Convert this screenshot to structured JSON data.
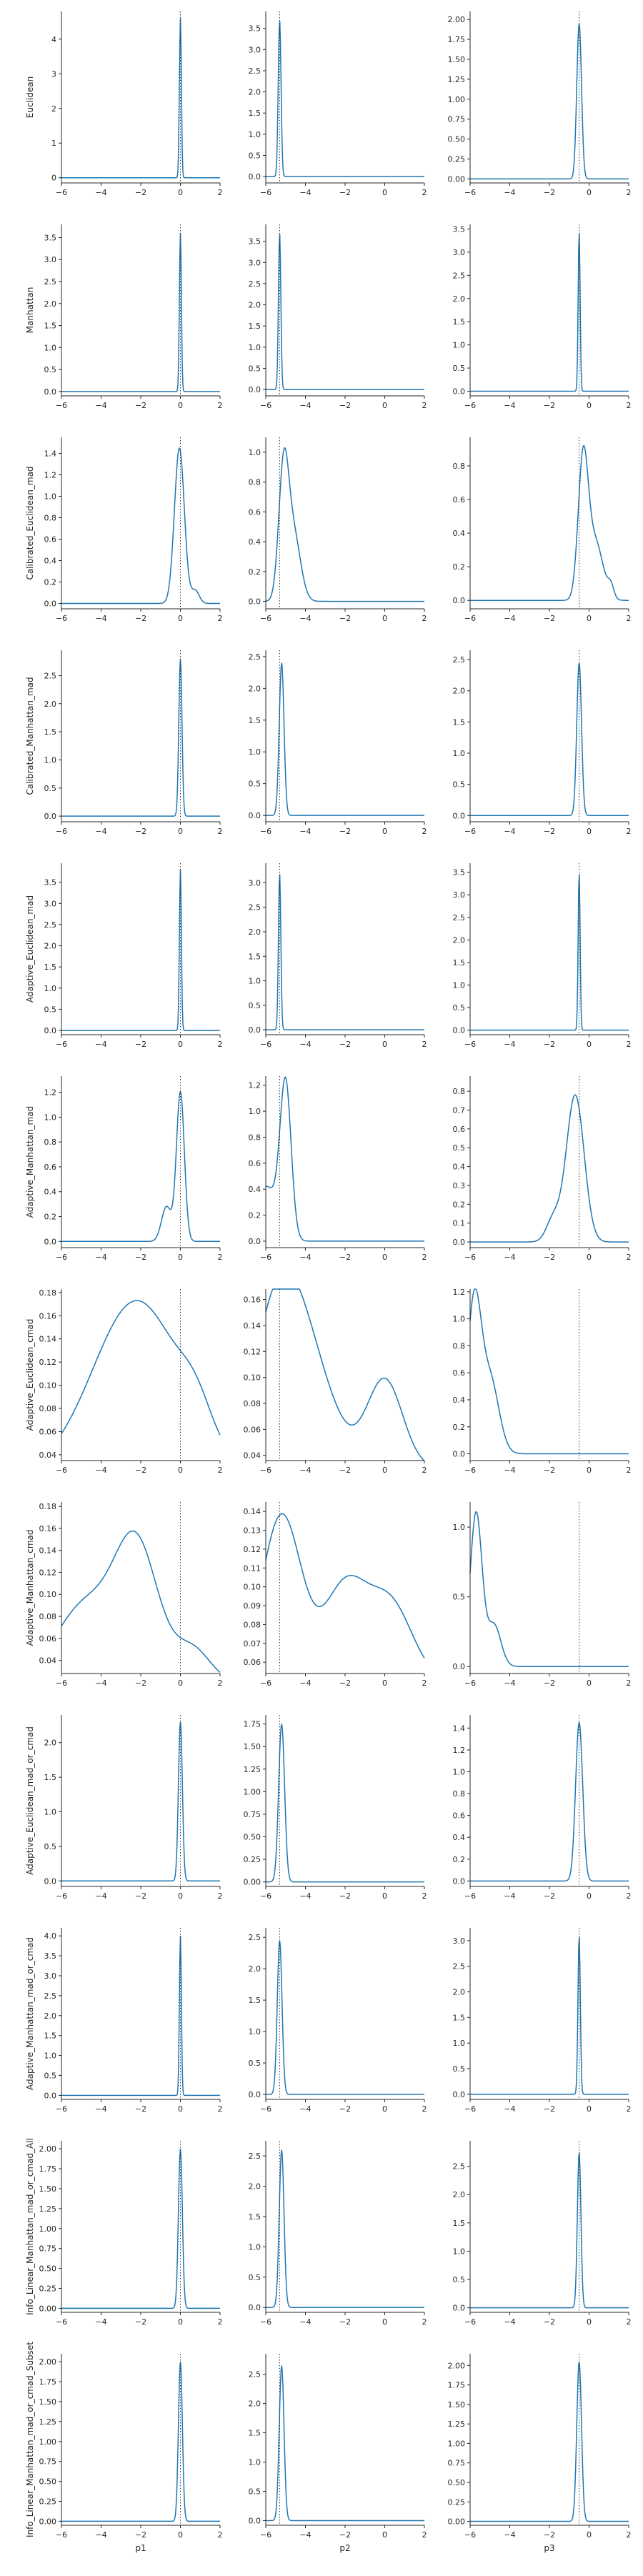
{
  "chart_data": {
    "type": "line",
    "grid": false,
    "x_ticks": [
      -6,
      -4,
      -2,
      0,
      2
    ],
    "xlim": [
      -6,
      2
    ],
    "column_labels": [
      "p1",
      "p2",
      "p3"
    ],
    "reference_values": [
      0,
      -5.3,
      -0.5
    ],
    "colors": {
      "density": "#1f77b4",
      "reference": "#333333",
      "axes": "#262626"
    },
    "rows": [
      {
        "ylabel": "Euclidean",
        "panels": [
          {
            "ylim": [
              -0.15,
              4.8
            ],
            "yticks": [
              0,
              1,
              2,
              3,
              4
            ],
            "peaks": [
              [
                0,
                0.05,
                4.6
              ]
            ]
          },
          {
            "ylim": [
              -0.15,
              3.9
            ],
            "yticks": [
              0,
              0.5,
              1.0,
              1.5,
              2.0,
              2.5,
              3.0,
              3.5
            ],
            "tick_decimals": 1,
            "peaks": [
              [
                -5.3,
                0.07,
                3.7
              ]
            ]
          },
          {
            "ylim": [
              -0.05,
              2.1
            ],
            "yticks": [
              0,
              0.25,
              0.5,
              0.75,
              1.0,
              1.25,
              1.5,
              1.75,
              2.0
            ],
            "tick_decimals": 2,
            "peaks": [
              [
                -0.5,
                0.12,
                1.95
              ]
            ]
          }
        ]
      },
      {
        "ylabel": "Manhattan",
        "panels": [
          {
            "ylim": [
              -0.1,
              3.8
            ],
            "yticks": [
              0,
              0.5,
              1.0,
              1.5,
              2.0,
              2.5,
              3.0,
              3.5
            ],
            "tick_decimals": 1,
            "peaks": [
              [
                0,
                0.05,
                3.6
              ]
            ]
          },
          {
            "ylim": [
              -0.15,
              3.9
            ],
            "yticks": [
              0,
              0.5,
              1.0,
              1.5,
              2.0,
              2.5,
              3.0,
              3.5
            ],
            "tick_decimals": 1,
            "peaks": [
              [
                -5.3,
                0.06,
                3.7
              ]
            ]
          },
          {
            "ylim": [
              -0.1,
              3.6
            ],
            "yticks": [
              0,
              0.5,
              1.0,
              1.5,
              2.0,
              2.5,
              3.0,
              3.5
            ],
            "tick_decimals": 1,
            "peaks": [
              [
                -0.5,
                0.05,
                3.45
              ]
            ]
          }
        ]
      },
      {
        "ylabel": "Calibrated_Euclidean_mad",
        "panels": [
          {
            "ylim": [
              -0.05,
              1.55
            ],
            "yticks": [
              0,
              0.2,
              0.4,
              0.6,
              0.8,
              1.0,
              1.2,
              1.4
            ],
            "tick_decimals": 1,
            "peaks": [
              [
                -0.05,
                0.25,
                1.45
              ],
              [
                0.75,
                0.2,
                0.12
              ]
            ]
          },
          {
            "ylim": [
              -0.05,
              1.1
            ],
            "yticks": [
              0,
              0.2,
              0.4,
              0.6,
              0.8,
              1.0
            ],
            "tick_decimals": 1,
            "peaks": [
              [
                -5.1,
                0.25,
                0.85
              ],
              [
                -4.6,
                0.35,
                0.45
              ]
            ]
          },
          {
            "ylim": [
              -0.05,
              0.97
            ],
            "yticks": [
              0,
              0.2,
              0.4,
              0.6,
              0.8
            ],
            "tick_decimals": 1,
            "peaks": [
              [
                -0.3,
                0.25,
                0.8
              ],
              [
                0.3,
                0.4,
                0.35
              ],
              [
                1.1,
                0.15,
                0.07
              ]
            ]
          }
        ]
      },
      {
        "ylabel": "Calibrated_Manhattan_mad",
        "panels": [
          {
            "ylim": [
              -0.1,
              2.95
            ],
            "yticks": [
              0,
              0.5,
              1.0,
              1.5,
              2.0,
              2.5
            ],
            "tick_decimals": 1,
            "peaks": [
              [
                0,
                0.08,
                2.8
              ]
            ]
          },
          {
            "ylim": [
              -0.1,
              2.6
            ],
            "yticks": [
              0,
              0.5,
              1.0,
              1.5,
              2.0,
              2.5
            ],
            "tick_decimals": 1,
            "peaks": [
              [
                -5.2,
                0.12,
                2.4
              ]
            ]
          },
          {
            "ylim": [
              -0.1,
              2.65
            ],
            "yticks": [
              0,
              0.5,
              1.0,
              1.5,
              2.0,
              2.5
            ],
            "tick_decimals": 1,
            "peaks": [
              [
                -0.5,
                0.12,
                2.45
              ]
            ]
          }
        ]
      },
      {
        "ylabel": "Adaptive_Euclidean_mad",
        "panels": [
          {
            "ylim": [
              -0.1,
              3.95
            ],
            "yticks": [
              0,
              0.5,
              1.0,
              1.5,
              2.0,
              2.5,
              3.0,
              3.5
            ],
            "tick_decimals": 1,
            "peaks": [
              [
                0,
                0.05,
                3.8
              ]
            ]
          },
          {
            "ylim": [
              -0.1,
              3.4
            ],
            "yticks": [
              0,
              0.5,
              1.0,
              1.5,
              2.0,
              2.5,
              3.0
            ],
            "tick_decimals": 1,
            "peaks": [
              [
                -5.3,
                0.06,
                3.2
              ]
            ]
          },
          {
            "ylim": [
              -0.1,
              3.7
            ],
            "yticks": [
              0,
              0.5,
              1.0,
              1.5,
              2.0,
              2.5,
              3.0,
              3.5
            ],
            "tick_decimals": 1,
            "peaks": [
              [
                -0.5,
                0.05,
                3.5
              ]
            ]
          }
        ]
      },
      {
        "ylabel": "Adaptive_Manhattan_mad",
        "panels": [
          {
            "ylim": [
              -0.05,
              1.33
            ],
            "yticks": [
              0,
              0.2,
              0.4,
              0.6,
              0.8,
              1.0,
              1.2
            ],
            "tick_decimals": 1,
            "peaks": [
              [
                0,
                0.2,
                1.2
              ],
              [
                -0.7,
                0.25,
                0.28
              ]
            ]
          },
          {
            "ylim": [
              -0.05,
              1.27
            ],
            "yticks": [
              0,
              0.2,
              0.4,
              0.6,
              0.8,
              1.0,
              1.2
            ],
            "tick_decimals": 1,
            "peaks": [
              [
                -5.0,
                0.28,
                1.18
              ],
              [
                -6.0,
                0.55,
                0.42
              ]
            ]
          },
          {
            "ylim": [
              -0.03,
              0.88
            ],
            "yticks": [
              0,
              0.1,
              0.2,
              0.3,
              0.4,
              0.5,
              0.6,
              0.7,
              0.8
            ],
            "tick_decimals": 1,
            "peaks": [
              [
                -0.7,
                0.45,
                0.78
              ],
              [
                -1.8,
                0.35,
                0.12
              ]
            ]
          }
        ]
      },
      {
        "ylabel": "Adaptive_Euclidean_cmad",
        "panels": [
          {
            "ylim": [
              0.035,
              0.183
            ],
            "yticks": [
              0.04,
              0.06,
              0.08,
              0.1,
              0.12,
              0.14,
              0.16,
              0.18
            ],
            "tick_decimals": 2,
            "baseline": 0.025,
            "peaks": [
              [
                -2.2,
                2.2,
                0.148
              ],
              [
                0.8,
                0.8,
                0.025
              ]
            ]
          },
          {
            "ylim": [
              0.036,
              0.168
            ],
            "yticks": [
              0.04,
              0.06,
              0.08,
              0.1,
              0.12,
              0.14,
              0.16
            ],
            "tick_decimals": 2,
            "baseline": 0.03,
            "peaks": [
              [
                -5.3,
                1.3,
                0.13
              ],
              [
                -3.5,
                1.3,
                0.05
              ],
              [
                0,
                0.9,
                0.068
              ]
            ]
          },
          {
            "ylim": [
              -0.05,
              1.22
            ],
            "yticks": [
              0,
              0.2,
              0.4,
              0.6,
              0.8,
              1.0,
              1.2
            ],
            "tick_decimals": 1,
            "peaks": [
              [
                -5.8,
                0.35,
                1.1
              ],
              [
                -5.0,
                0.45,
                0.55
              ]
            ]
          }
        ]
      },
      {
        "ylabel": "Adaptive_Manhattan_cmad",
        "panels": [
          {
            "ylim": [
              0.028,
              0.184
            ],
            "yticks": [
              0.04,
              0.06,
              0.08,
              0.1,
              0.12,
              0.14,
              0.16,
              0.18
            ],
            "tick_decimals": 2,
            "baseline": 0.02,
            "peaks": [
              [
                -2.2,
                1.1,
                0.12
              ],
              [
                -4.8,
                1.5,
                0.07
              ],
              [
                0.6,
                0.9,
                0.03
              ]
            ]
          },
          {
            "ylim": [
              0.054,
              0.145
            ],
            "yticks": [
              0.06,
              0.07,
              0.08,
              0.09,
              0.1,
              0.11,
              0.12,
              0.13,
              0.14
            ],
            "tick_decimals": 2,
            "baseline": 0.05,
            "peaks": [
              [
                -5.2,
                1.0,
                0.088
              ],
              [
                -2.0,
                1.1,
                0.05
              ],
              [
                0.3,
                1.1,
                0.04
              ]
            ]
          },
          {
            "ylim": [
              -0.05,
              1.18
            ],
            "yticks": [
              0,
              0.5,
              1.0
            ],
            "tick_decimals": 1,
            "peaks": [
              [
                -5.7,
                0.3,
                1.1
              ],
              [
                -4.8,
                0.35,
                0.3
              ]
            ]
          }
        ]
      },
      {
        "ylabel": "Adaptive_Euclidean_mad_or_cmad",
        "panels": [
          {
            "ylim": [
              -0.08,
              2.4
            ],
            "yticks": [
              0,
              0.5,
              1.0,
              1.5,
              2.0
            ],
            "tick_decimals": 1,
            "peaks": [
              [
                0,
                0.1,
                2.3
              ]
            ]
          },
          {
            "ylim": [
              -0.05,
              1.85
            ],
            "yticks": [
              0,
              0.25,
              0.5,
              0.75,
              1.0,
              1.25,
              1.5,
              1.75
            ],
            "tick_decimals": 2,
            "peaks": [
              [
                -5.2,
                0.15,
                1.75
              ]
            ]
          },
          {
            "ylim": [
              -0.05,
              1.52
            ],
            "yticks": [
              0,
              0.2,
              0.4,
              0.6,
              0.8,
              1.0,
              1.2,
              1.4
            ],
            "tick_decimals": 1,
            "peaks": [
              [
                -0.5,
                0.18,
                1.45
              ]
            ]
          }
        ]
      },
      {
        "ylabel": "Adaptive_Manhattan_mad_or_cmad",
        "panels": [
          {
            "ylim": [
              -0.1,
              4.2
            ],
            "yticks": [
              0,
              0.5,
              1.0,
              1.5,
              2.0,
              2.5,
              3.0,
              3.5,
              4.0
            ],
            "tick_decimals": 1,
            "peaks": [
              [
                0,
                0.05,
                4.0
              ]
            ]
          },
          {
            "ylim": [
              -0.08,
              2.65
            ],
            "yticks": [
              0,
              0.5,
              1.0,
              1.5,
              2.0,
              2.5
            ],
            "tick_decimals": 1,
            "peaks": [
              [
                -5.3,
                0.12,
                2.45
              ]
            ]
          },
          {
            "ylim": [
              -0.1,
              3.25
            ],
            "yticks": [
              0,
              0.5,
              1.0,
              1.5,
              2.0,
              2.5,
              3.0
            ],
            "tick_decimals": 1,
            "peaks": [
              [
                -0.5,
                0.06,
                3.1
              ]
            ]
          }
        ]
      },
      {
        "ylabel": "Info_Linear_Manhattan_mad_or_cmad_All",
        "panels": [
          {
            "ylim": [
              -0.05,
              2.1
            ],
            "yticks": [
              0,
              0.25,
              0.5,
              0.75,
              1.0,
              1.25,
              1.5,
              1.75,
              2.0
            ],
            "tick_decimals": 2,
            "peaks": [
              [
                0,
                0.1,
                2.0
              ]
            ]
          },
          {
            "ylim": [
              -0.08,
              2.75
            ],
            "yticks": [
              0,
              0.5,
              1.0,
              1.5,
              2.0,
              2.5
            ],
            "tick_decimals": 1,
            "peaks": [
              [
                -5.2,
                0.12,
                2.6
              ]
            ]
          },
          {
            "ylim": [
              -0.08,
              2.95
            ],
            "yticks": [
              0,
              0.5,
              1.0,
              1.5,
              2.0,
              2.5
            ],
            "tick_decimals": 1,
            "peaks": [
              [
                -0.5,
                0.09,
                2.75
              ]
            ]
          }
        ]
      },
      {
        "ylabel": "Info_Linear_Manhattan_mad_or_cmad_Subset",
        "panels": [
          {
            "ylim": [
              -0.05,
              2.1
            ],
            "yticks": [
              0,
              0.25,
              0.5,
              0.75,
              1.0,
              1.25,
              1.5,
              1.75,
              2.0
            ],
            "tick_decimals": 2,
            "peaks": [
              [
                0,
                0.1,
                2.0
              ]
            ]
          },
          {
            "ylim": [
              -0.08,
              2.85
            ],
            "yticks": [
              0,
              0.5,
              1.0,
              1.5,
              2.0,
              2.5
            ],
            "tick_decimals": 1,
            "peaks": [
              [
                -5.2,
                0.12,
                2.65
              ]
            ]
          },
          {
            "ylim": [
              -0.05,
              2.15
            ],
            "yticks": [
              0,
              0.25,
              0.5,
              0.75,
              1.0,
              1.25,
              1.5,
              1.75,
              2.0
            ],
            "tick_decimals": 2,
            "peaks": [
              [
                -0.5,
                0.12,
                2.05
              ]
            ]
          }
        ]
      }
    ]
  }
}
